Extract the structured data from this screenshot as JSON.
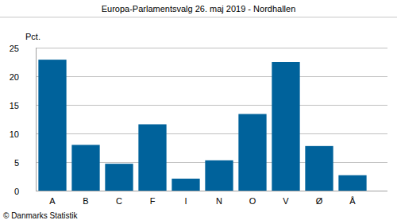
{
  "chart_data": {
    "type": "bar",
    "title": "Europa-Parlamentsvalg 26. maj 2019 - Nordhallen",
    "ylabel": "Pct.",
    "source": "© Danmarks Statistik",
    "categories": [
      "A",
      "B",
      "C",
      "F",
      "I",
      "N",
      "O",
      "V",
      "Ø",
      "Å"
    ],
    "values": [
      22.9,
      8.0,
      4.7,
      11.6,
      2.1,
      5.3,
      13.4,
      22.5,
      7.8,
      2.7
    ],
    "color": "#00629b",
    "ylim": [
      0,
      25
    ],
    "yticks": [
      0,
      5,
      10,
      15,
      20,
      25
    ],
    "grid": true
  }
}
